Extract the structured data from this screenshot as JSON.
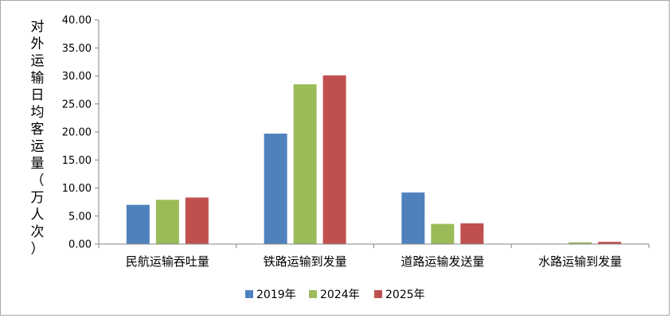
{
  "chart_data": {
    "type": "bar",
    "ylabel": "对外运输日均客运量（万人次）",
    "categories": [
      "民航运输吞吐量",
      "铁路运输到发量",
      "道路运输发送量",
      "水路运输到发量"
    ],
    "series": [
      {
        "name": "2019年",
        "color": "#4f81bd",
        "values": [
          7.0,
          19.7,
          9.2,
          0.0
        ]
      },
      {
        "name": "2024年",
        "color": "#9bbb59",
        "values": [
          7.9,
          28.5,
          3.6,
          0.3
        ]
      },
      {
        "name": "2025年",
        "color": "#c0504d",
        "values": [
          8.3,
          30.1,
          3.7,
          0.4
        ]
      }
    ],
    "yticks": [
      "0.00",
      "5.00",
      "10.00",
      "15.00",
      "20.00",
      "25.00",
      "30.00",
      "35.00",
      "40.00"
    ],
    "ylim": [
      0,
      40
    ],
    "ystep": 5,
    "grid": false,
    "legend_position": "bottom"
  }
}
